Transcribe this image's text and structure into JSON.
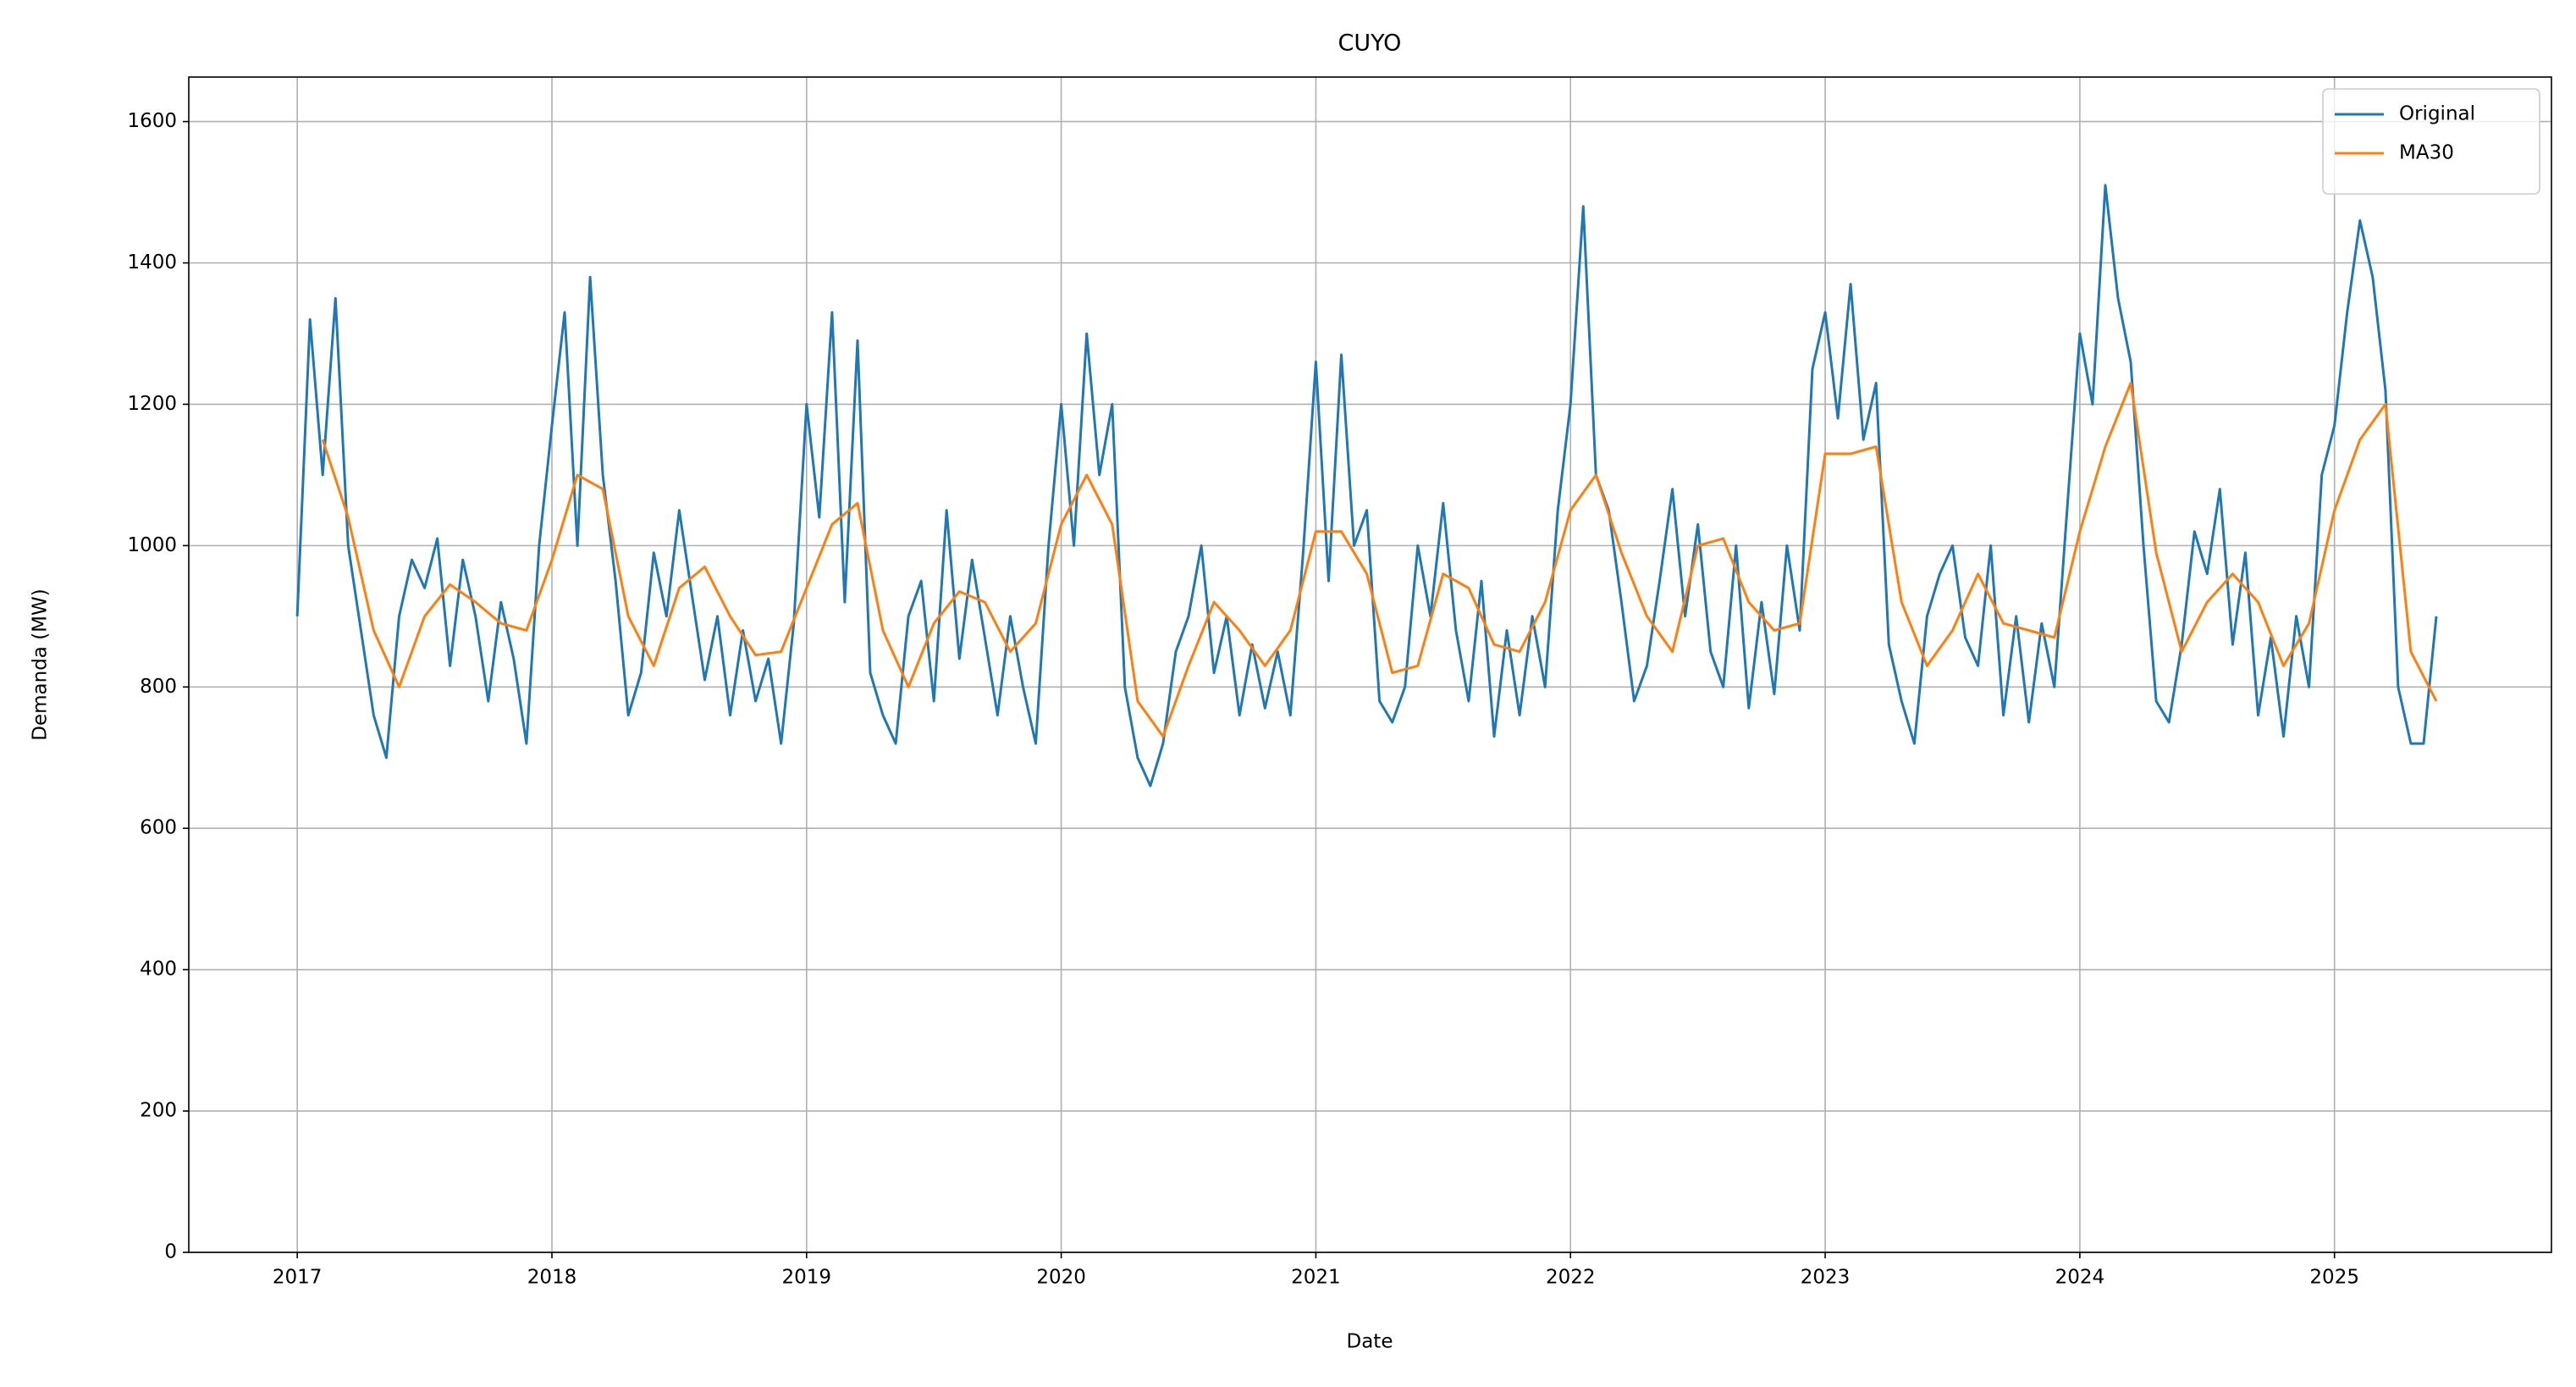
{
  "chart_data": {
    "type": "line",
    "title": "CUYO",
    "x_label": "Date",
    "y_label": "Demanda (MW)",
    "xlim": [
      2016.574,
      2025.852
    ],
    "xticks": [
      2017,
      2018,
      2019,
      2020,
      2021,
      2022,
      2023,
      2024,
      2025
    ],
    "ylim": [
      0,
      1663
    ],
    "yticks": [
      0,
      200,
      400,
      600,
      800,
      1000,
      1200,
      1400,
      1600
    ],
    "grid": true,
    "legend": "upper right",
    "series": [
      {
        "name": "Original",
        "color": "#1f77b4",
        "x": [
          2017.0,
          2017.05,
          2017.1,
          2017.15,
          2017.2,
          2017.25,
          2017.3,
          2017.35,
          2017.4,
          2017.45,
          2017.5,
          2017.55,
          2017.6,
          2017.65,
          2017.7,
          2017.75,
          2017.8,
          2017.85,
          2017.9,
          2017.95,
          2018.0,
          2018.05,
          2018.1,
          2018.15,
          2018.2,
          2018.25,
          2018.3,
          2018.35,
          2018.4,
          2018.45,
          2018.5,
          2018.55,
          2018.6,
          2018.65,
          2018.7,
          2018.75,
          2018.8,
          2018.85,
          2018.9,
          2018.95,
          2019.0,
          2019.05,
          2019.1,
          2019.15,
          2019.2,
          2019.25,
          2019.3,
          2019.35,
          2019.4,
          2019.45,
          2019.5,
          2019.55,
          2019.6,
          2019.65,
          2019.7,
          2019.75,
          2019.8,
          2019.85,
          2019.9,
          2019.95,
          2020.0,
          2020.05,
          2020.1,
          2020.15,
          2020.2,
          2020.25,
          2020.3,
          2020.35,
          2020.4,
          2020.45,
          2020.5,
          2020.55,
          2020.6,
          2020.65,
          2020.7,
          2020.75,
          2020.8,
          2020.85,
          2020.9,
          2020.95,
          2021.0,
          2021.05,
          2021.1,
          2021.15,
          2021.2,
          2021.25,
          2021.3,
          2021.35,
          2021.4,
          2021.45,
          2021.5,
          2021.55,
          2021.6,
          2021.65,
          2021.7,
          2021.75,
          2021.8,
          2021.85,
          2021.9,
          2021.95,
          2022.0,
          2022.05,
          2022.1,
          2022.15,
          2022.2,
          2022.25,
          2022.3,
          2022.35,
          2022.4,
          2022.45,
          2022.5,
          2022.55,
          2022.6,
          2022.65,
          2022.7,
          2022.75,
          2022.8,
          2022.85,
          2022.9,
          2022.95,
          2023.0,
          2023.05,
          2023.1,
          2023.15,
          2023.2,
          2023.25,
          2023.3,
          2023.35,
          2023.4,
          2023.45,
          2023.5,
          2023.55,
          2023.6,
          2023.65,
          2023.7,
          2023.75,
          2023.8,
          2023.85,
          2023.9,
          2023.95,
          2024.0,
          2024.05,
          2024.1,
          2024.15,
          2024.2,
          2024.25,
          2024.3,
          2024.35,
          2024.4,
          2024.45,
          2024.5,
          2024.55,
          2024.6,
          2024.65,
          2024.7,
          2024.75,
          2024.8,
          2024.85,
          2024.9,
          2024.95,
          2025.0,
          2025.05,
          2025.1,
          2025.15,
          2025.2,
          2025.25,
          2025.3,
          2025.35,
          2025.4
        ],
        "values": [
          900,
          1320,
          1100,
          1350,
          1000,
          880,
          760,
          700,
          900,
          980,
          940,
          1010,
          830,
          980,
          900,
          780,
          920,
          840,
          720,
          1000,
          1170,
          1330,
          1000,
          1380,
          1100,
          950,
          760,
          820,
          990,
          900,
          1050,
          930,
          810,
          900,
          760,
          880,
          780,
          840,
          720,
          890,
          1200,
          1040,
          1330,
          920,
          1290,
          820,
          760,
          720,
          900,
          950,
          780,
          1050,
          840,
          980,
          870,
          760,
          900,
          800,
          720,
          1000,
          1200,
          1000,
          1300,
          1100,
          1200,
          800,
          700,
          660,
          720,
          850,
          900,
          1000,
          820,
          900,
          760,
          860,
          770,
          850,
          760,
          990,
          1260,
          950,
          1270,
          1000,
          1050,
          780,
          750,
          800,
          1000,
          900,
          1060,
          880,
          780,
          950,
          730,
          880,
          760,
          900,
          800,
          1050,
          1200,
          1480,
          1100,
          1050,
          920,
          780,
          830,
          950,
          1080,
          900,
          1030,
          850,
          800,
          1000,
          770,
          920,
          790,
          1000,
          880,
          1250,
          1330,
          1180,
          1370,
          1150,
          1230,
          860,
          780,
          720,
          900,
          960,
          1000,
          870,
          830,
          1000,
          760,
          900,
          750,
          890,
          800,
          1050,
          1300,
          1200,
          1510,
          1350,
          1260,
          1000,
          780,
          750,
          860,
          1020,
          960,
          1080,
          860,
          990,
          760,
          870,
          730,
          900,
          800,
          1100,
          1170,
          1330,
          1460,
          1380,
          1220,
          800,
          720,
          720,
          900
        ]
      },
      {
        "name": "MA30",
        "color": "#ff7f0e",
        "x": [
          2017.1,
          2017.2,
          2017.3,
          2017.4,
          2017.5,
          2017.6,
          2017.7,
          2017.8,
          2017.9,
          2018.0,
          2018.1,
          2018.2,
          2018.3,
          2018.4,
          2018.5,
          2018.6,
          2018.7,
          2018.8,
          2018.9,
          2019.0,
          2019.1,
          2019.2,
          2019.3,
          2019.4,
          2019.5,
          2019.6,
          2019.7,
          2019.8,
          2019.9,
          2020.0,
          2020.1,
          2020.2,
          2020.3,
          2020.4,
          2020.5,
          2020.6,
          2020.7,
          2020.8,
          2020.9,
          2021.0,
          2021.1,
          2021.2,
          2021.3,
          2021.4,
          2021.5,
          2021.6,
          2021.7,
          2021.8,
          2021.9,
          2022.0,
          2022.1,
          2022.2,
          2022.3,
          2022.4,
          2022.5,
          2022.6,
          2022.7,
          2022.8,
          2022.9,
          2023.0,
          2023.1,
          2023.2,
          2023.3,
          2023.4,
          2023.5,
          2023.6,
          2023.7,
          2023.8,
          2023.9,
          2024.0,
          2024.1,
          2024.2,
          2024.3,
          2024.4,
          2024.5,
          2024.6,
          2024.7,
          2024.8,
          2024.9,
          2025.0,
          2025.1,
          2025.2,
          2025.3,
          2025.4
        ],
        "values": [
          1150,
          1040,
          880,
          800,
          900,
          945,
          920,
          890,
          880,
          980,
          1100,
          1080,
          900,
          830,
          940,
          970,
          900,
          845,
          850,
          940,
          1030,
          1060,
          880,
          800,
          890,
          935,
          920,
          850,
          890,
          1030,
          1100,
          1030,
          780,
          730,
          830,
          920,
          880,
          830,
          880,
          1020,
          1020,
          960,
          820,
          830,
          960,
          940,
          860,
          850,
          920,
          1050,
          1100,
          990,
          900,
          850,
          1000,
          1010,
          920,
          880,
          890,
          1130,
          1130,
          1140,
          920,
          830,
          880,
          960,
          890,
          880,
          870,
          1020,
          1140,
          1230,
          990,
          850,
          920,
          960,
          920,
          830,
          890,
          1050,
          1150,
          1200,
          850,
          780
        ]
      }
    ]
  }
}
